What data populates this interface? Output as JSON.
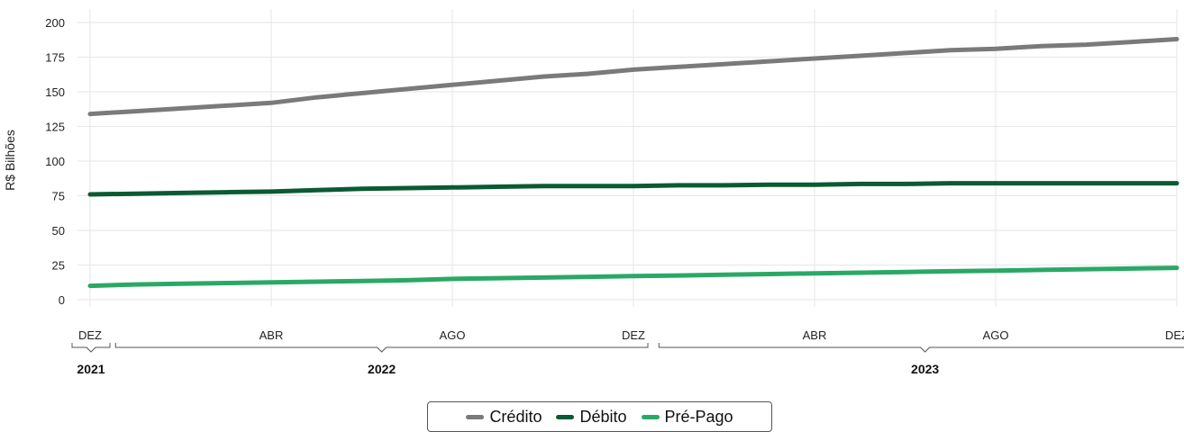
{
  "chart_data": {
    "type": "line",
    "ylabel": "R$ Bilhões",
    "ylim": [
      0,
      200
    ],
    "yticks": [
      "0",
      "25",
      "50",
      "75",
      "100",
      "125",
      "150",
      "175",
      "200"
    ],
    "x": [
      "2021-12",
      "2022-01",
      "2022-02",
      "2022-03",
      "2022-04",
      "2022-05",
      "2022-06",
      "2022-07",
      "2022-08",
      "2022-09",
      "2022-10",
      "2022-11",
      "2022-12",
      "2023-01",
      "2023-02",
      "2023-03",
      "2023-04",
      "2023-05",
      "2023-06",
      "2023-07",
      "2023-08",
      "2023-09",
      "2023-10",
      "2023-11",
      "2023-12"
    ],
    "month_ticks": [
      {
        "x": "2021-12",
        "label": "DEZ"
      },
      {
        "x": "2022-04",
        "label": "ABR"
      },
      {
        "x": "2022-08",
        "label": "AGO"
      },
      {
        "x": "2022-12",
        "label": "DEZ"
      },
      {
        "x": "2023-04",
        "label": "ABR"
      },
      {
        "x": "2023-08",
        "label": "AGO"
      },
      {
        "x": "2023-12",
        "label": "DEZ"
      }
    ],
    "years": [
      {
        "label": "2021",
        "from": "2021-12",
        "to": "2021-12"
      },
      {
        "label": "2022",
        "from": "2022-01",
        "to": "2022-12"
      },
      {
        "label": "2023",
        "from": "2023-01",
        "to": "2023-12"
      }
    ],
    "series": [
      {
        "name": "Crédito",
        "color": "#7a7a7a",
        "values": [
          134,
          136,
          138,
          140,
          142,
          146,
          149,
          152,
          155,
          158,
          161,
          163,
          166,
          168,
          170,
          172,
          174,
          176,
          178,
          180,
          181,
          183,
          184,
          186,
          188
        ]
      },
      {
        "name": "Débito",
        "color": "#0a5a32",
        "values": [
          76,
          76.5,
          77,
          77.5,
          78,
          79,
          80,
          80.5,
          81,
          81.5,
          82,
          82,
          82,
          82.5,
          82.5,
          83,
          83,
          83.5,
          83.5,
          84,
          84,
          84,
          84,
          84,
          84
        ]
      },
      {
        "name": "Pré-Pago",
        "color": "#2aa866",
        "values": [
          10,
          11,
          11.5,
          12,
          12.5,
          13,
          13.5,
          14,
          15,
          15.5,
          16,
          16.5,
          17,
          17.5,
          18,
          18.5,
          19,
          19.5,
          20,
          20.5,
          21,
          21.5,
          22,
          22.5,
          23
        ]
      }
    ],
    "grid": true,
    "legend_position": "bottom-center"
  }
}
